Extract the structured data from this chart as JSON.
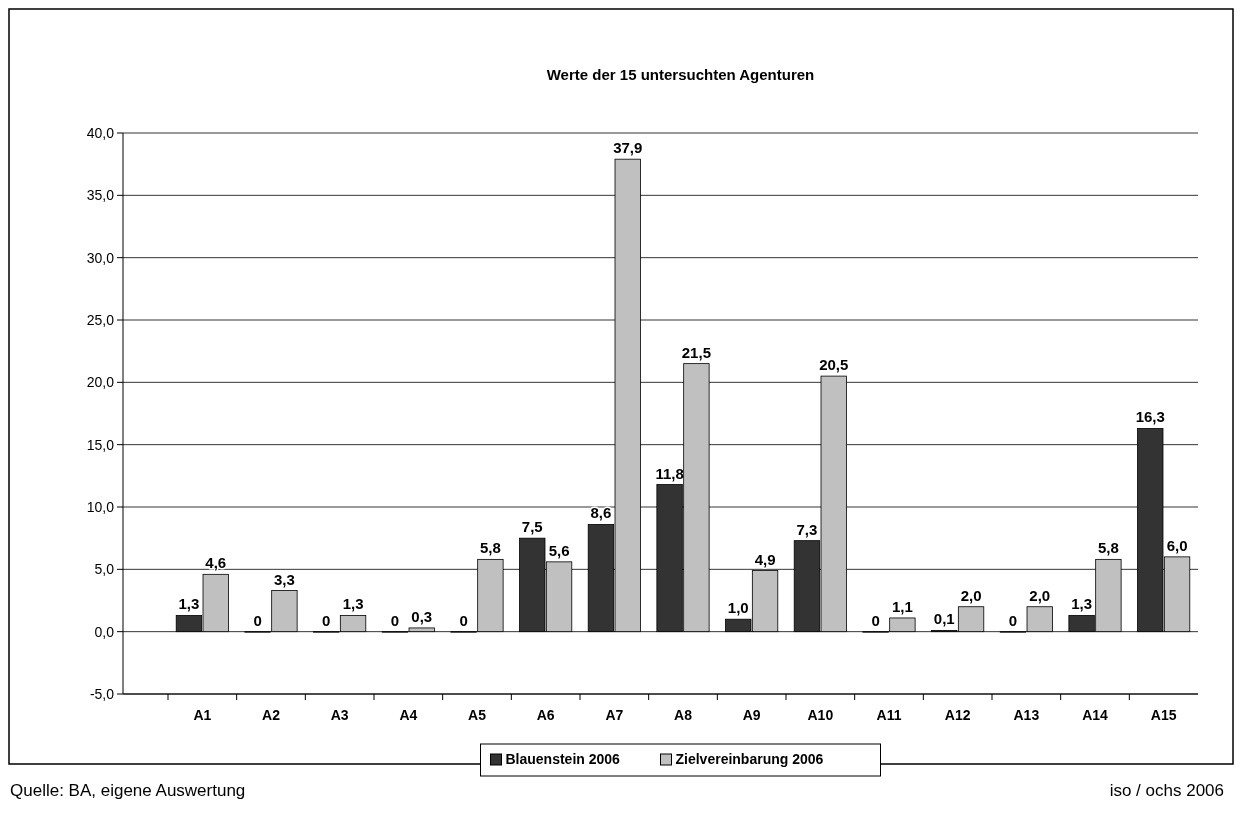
{
  "chart_data": {
    "type": "bar",
    "title": "Werte der 15 untersuchten Agenturen",
    "categories": [
      "A1",
      "A2",
      "A3",
      "A4",
      "A5",
      "A6",
      "A7",
      "A8",
      "A9",
      "A10",
      "A11",
      "A12",
      "A13",
      "A14",
      "A15"
    ],
    "series": [
      {
        "name": "Blauenstein 2006",
        "color": "#333333",
        "values": [
          1.3,
          0,
          0,
          0,
          0,
          7.5,
          8.6,
          11.8,
          1.0,
          7.3,
          0,
          0.1,
          0,
          1.3,
          16.3
        ],
        "value_labels": [
          "1,3",
          "0",
          "0",
          "0",
          "0",
          "7,5",
          "8,6",
          "11,8",
          "1,0",
          "7,3",
          "0",
          "0,1",
          "0",
          "1,3",
          "16,3"
        ]
      },
      {
        "name": "Zielvereinbarung 2006",
        "color": "#c0c0c0",
        "values": [
          4.6,
          3.3,
          1.3,
          0.3,
          5.8,
          5.6,
          37.9,
          21.5,
          4.9,
          20.5,
          1.1,
          2.0,
          2.0,
          5.8,
          6.0
        ],
        "value_labels": [
          "4,6",
          "3,3",
          "1,3",
          "0,3",
          "5,8",
          "5,6",
          "37,9",
          "21,5",
          "4,9",
          "20,5",
          "1,1",
          "2,0",
          "2,0",
          "5,8",
          "6,0"
        ]
      }
    ],
    "ylim": [
      -5,
      40
    ],
    "yticks": [
      {
        "value": -5,
        "label": "-5,0"
      },
      {
        "value": 0,
        "label": "0,0"
      },
      {
        "value": 5,
        "label": "5,0"
      },
      {
        "value": 10,
        "label": "10,0"
      },
      {
        "value": 15,
        "label": "15,0"
      },
      {
        "value": 20,
        "label": "20,0"
      },
      {
        "value": 25,
        "label": "25,0"
      },
      {
        "value": 30,
        "label": "30,0"
      },
      {
        "value": 35,
        "label": "35,0"
      },
      {
        "value": 40,
        "label": "40,0"
      }
    ],
    "grid": "y",
    "legend": "bottom",
    "annotations": [
      "Quelle: BA, eigene Auswertung",
      "iso / ochs 2006"
    ]
  }
}
